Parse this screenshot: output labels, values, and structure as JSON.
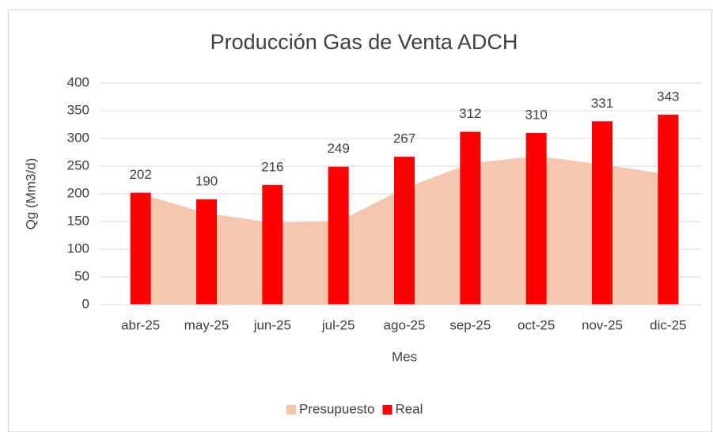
{
  "chart_data": {
    "type": "bar",
    "title": "Producción Gas de Venta ADCH",
    "x_label": "Mes",
    "y_label": "Qg (Mm3/d)",
    "categories": [
      "abr-25",
      "may-25",
      "jun-25",
      "jul-25",
      "ago-25",
      "sep-25",
      "oct-25",
      "nov-25",
      "dic-25"
    ],
    "series": [
      {
        "name": "Presupuesto",
        "type": "area",
        "color": "#f6c6ad",
        "values": [
          200,
          165,
          148,
          150,
          210,
          255,
          268,
          253,
          235
        ]
      },
      {
        "name": "Real",
        "type": "bar",
        "color": "#ff0000",
        "values": [
          202,
          190,
          216,
          249,
          267,
          312,
          310,
          331,
          343
        ]
      }
    ],
    "ylim": [
      0,
      400
    ],
    "yticks": [
      0,
      50,
      100,
      150,
      200,
      250,
      300,
      350,
      400
    ],
    "grid": true,
    "legend": "bottom"
  }
}
